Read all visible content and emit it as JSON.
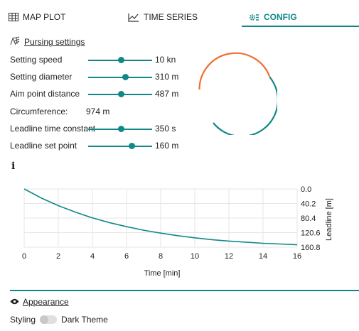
{
  "tabs": [
    {
      "label": "MAP PLOT",
      "icon": "map-grid-icon"
    },
    {
      "label": "TIME SERIES",
      "icon": "line-chart-icon"
    },
    {
      "label": "CONFIG",
      "icon": "gear-sliders-icon",
      "active": true
    }
  ],
  "pursing": {
    "title": "Pursing settings",
    "icon": "ship-net-icon",
    "settings": [
      {
        "label": "Setting speed",
        "value": "10 kn",
        "level": 0.52
      },
      {
        "label": "Setting diameter",
        "value": "310 m",
        "level": 0.58
      },
      {
        "label": "Aim point distance",
        "value": "487 m",
        "level": 0.52
      }
    ],
    "circumference": {
      "label": "Circumference:",
      "value": "974 m"
    },
    "settings2": [
      {
        "label": "Leadline time constant",
        "value": "350 s",
        "level": 0.52
      },
      {
        "label": "Leadline set point",
        "value": "160 m",
        "level": 0.68
      }
    ]
  },
  "info_icon": "i",
  "arc_colors": {
    "primary": "#f07030",
    "secondary": "#118888"
  },
  "chart_data": {
    "type": "line",
    "title": "",
    "xlabel": "Time [min]",
    "ylabel": "Leadline [m]",
    "xlim": [
      0,
      16
    ],
    "ylim": [
      0,
      160.8
    ],
    "y_inverted": true,
    "x_ticks": [
      "0",
      "2",
      "4",
      "6",
      "8",
      "10",
      "12",
      "14",
      "16"
    ],
    "y_ticks": [
      "0.0",
      "40.2",
      "80.4",
      "120.6",
      "160.8"
    ],
    "grid": true,
    "series": [
      {
        "color": "#118888",
        "x": [
          0,
          1,
          2,
          3,
          4,
          5,
          6,
          7,
          8,
          9,
          10,
          11,
          12,
          13,
          14,
          15,
          16
        ],
        "y": [
          0,
          25,
          46,
          64,
          80,
          93,
          104,
          114,
          122,
          129,
          135,
          140,
          144,
          147,
          150,
          152,
          154
        ]
      }
    ]
  },
  "appearance": {
    "title": "Appearance",
    "icon": "eye-icon",
    "styling_label": "Styling",
    "theme_label": "Dark Theme",
    "dark_theme_on": false
  },
  "accent_color": "#118888"
}
